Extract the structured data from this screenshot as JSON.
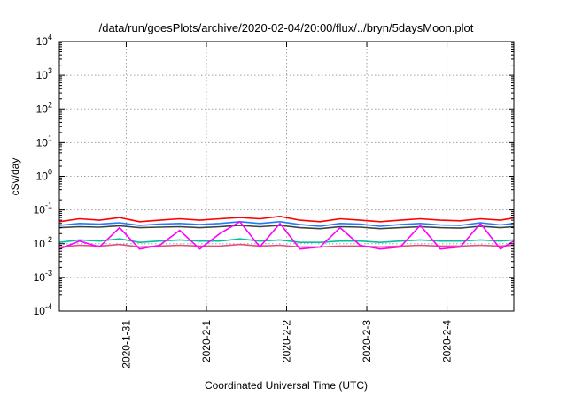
{
  "chart_data": {
    "type": "line",
    "title": "/data/run/goesPlots/archive/2020-02-04/20:00/flux/../bryn/5daysMoon.plot",
    "xlabel": "Coordinated Universal Time (UTC)",
    "ylabel": "cSv/day",
    "yscale": "log",
    "ylim": [
      0.0001,
      10000
    ],
    "xlim": [
      "2020-01-30 04:00",
      "2020-02-04 20:00"
    ],
    "grid": true,
    "y_ticks": [
      {
        "base": "10",
        "exp": "-4"
      },
      {
        "base": "10",
        "exp": "-3"
      },
      {
        "base": "10",
        "exp": "-2"
      },
      {
        "base": "10",
        "exp": "-1"
      },
      {
        "base": "10",
        "exp": "0"
      },
      {
        "base": "10",
        "exp": "1"
      },
      {
        "base": "10",
        "exp": "2"
      },
      {
        "base": "10",
        "exp": "3"
      },
      {
        "base": "10",
        "exp": "4"
      }
    ],
    "x_ticks": [
      "2020-1-31",
      "2020-2-1",
      "2020-2-2",
      "2020-2-3",
      "2020-2-4"
    ],
    "x": [
      "2020-01-30 04:00",
      "2020-01-30 10:00",
      "2020-01-30 16:00",
      "2020-01-30 22:00",
      "2020-01-31 04:00",
      "2020-01-31 10:00",
      "2020-01-31 16:00",
      "2020-01-31 22:00",
      "2020-02-01 04:00",
      "2020-02-01 10:00",
      "2020-02-01 16:00",
      "2020-02-01 22:00",
      "2020-02-02 04:00",
      "2020-02-02 10:00",
      "2020-02-02 16:00",
      "2020-02-02 22:00",
      "2020-02-03 04:00",
      "2020-02-03 10:00",
      "2020-02-03 16:00",
      "2020-02-03 22:00",
      "2020-02-04 04:00",
      "2020-02-04 10:00",
      "2020-02-04 16:00",
      "2020-02-04 20:00"
    ],
    "series": [
      {
        "color": "#ff0000",
        "values": [
          0.045,
          0.055,
          0.05,
          0.06,
          0.045,
          0.05,
          0.055,
          0.05,
          0.055,
          0.06,
          0.055,
          0.065,
          0.05,
          0.045,
          0.055,
          0.05,
          0.045,
          0.05,
          0.055,
          0.05,
          0.048,
          0.055,
          0.05,
          0.058
        ]
      },
      {
        "color": "#1e7bff",
        "values": [
          0.035,
          0.04,
          0.038,
          0.042,
          0.035,
          0.038,
          0.04,
          0.037,
          0.04,
          0.045,
          0.04,
          0.045,
          0.037,
          0.033,
          0.04,
          0.038,
          0.033,
          0.037,
          0.04,
          0.036,
          0.035,
          0.042,
          0.036,
          0.04
        ]
      },
      {
        "color": "#404040",
        "values": [
          0.03,
          0.032,
          0.031,
          0.034,
          0.03,
          0.031,
          0.032,
          0.03,
          0.032,
          0.035,
          0.032,
          0.035,
          0.03,
          0.028,
          0.032,
          0.031,
          0.028,
          0.03,
          0.032,
          0.03,
          0.029,
          0.033,
          0.03,
          0.032
        ]
      },
      {
        "color": "#00c0a0",
        "values": [
          0.011,
          0.013,
          0.012,
          0.014,
          0.011,
          0.012,
          0.013,
          0.012,
          0.012,
          0.014,
          0.012,
          0.013,
          0.011,
          0.011,
          0.012,
          0.012,
          0.011,
          0.012,
          0.013,
          0.012,
          0.012,
          0.013,
          0.012,
          0.013
        ]
      },
      {
        "color": "#e0507c",
        "values": [
          0.008,
          0.009,
          0.0085,
          0.0095,
          0.008,
          0.0085,
          0.009,
          0.0085,
          0.0085,
          0.0095,
          0.0085,
          0.009,
          0.008,
          0.008,
          0.0085,
          0.0085,
          0.008,
          0.0085,
          0.009,
          0.0085,
          0.0085,
          0.009,
          0.0085,
          0.009
        ]
      },
      {
        "color": "#ff00ff",
        "values": [
          0.007,
          0.012,
          0.008,
          0.03,
          0.007,
          0.009,
          0.025,
          0.007,
          0.02,
          0.045,
          0.008,
          0.04,
          0.007,
          0.008,
          0.03,
          0.009,
          0.007,
          0.008,
          0.035,
          0.007,
          0.008,
          0.04,
          0.007,
          0.012
        ]
      }
    ]
  }
}
